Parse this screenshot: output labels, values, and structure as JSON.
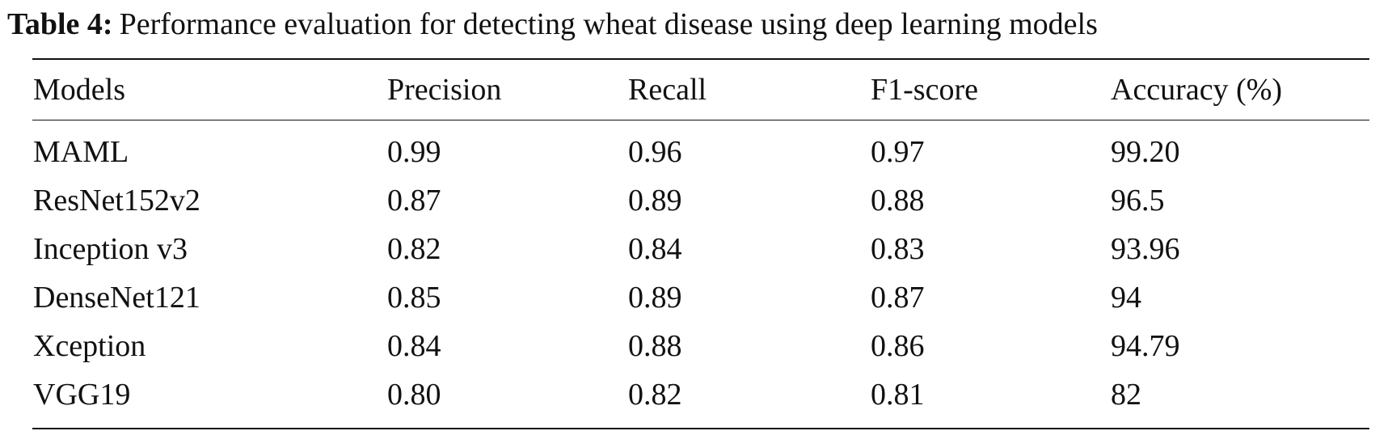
{
  "caption": {
    "label": "Table 4:",
    "text": "Performance evaluation for detecting wheat disease using deep learning models"
  },
  "table": {
    "headers": [
      "Models",
      "Precision",
      "Recall",
      "F1-score",
      "Accuracy (%)"
    ],
    "rows": [
      [
        "MAML",
        "0.99",
        "0.96",
        "0.97",
        "99.20"
      ],
      [
        "ResNet152v2",
        "0.87",
        "0.89",
        "0.88",
        "96.5"
      ],
      [
        "Inception v3",
        "0.82",
        "0.84",
        "0.83",
        "93.96"
      ],
      [
        "DenseNet121",
        "0.85",
        "0.89",
        "0.87",
        "94"
      ],
      [
        "Xception",
        "0.84",
        "0.88",
        "0.86",
        "94.79"
      ],
      [
        "VGG19",
        "0.80",
        "0.82",
        "0.81",
        "82"
      ]
    ]
  }
}
